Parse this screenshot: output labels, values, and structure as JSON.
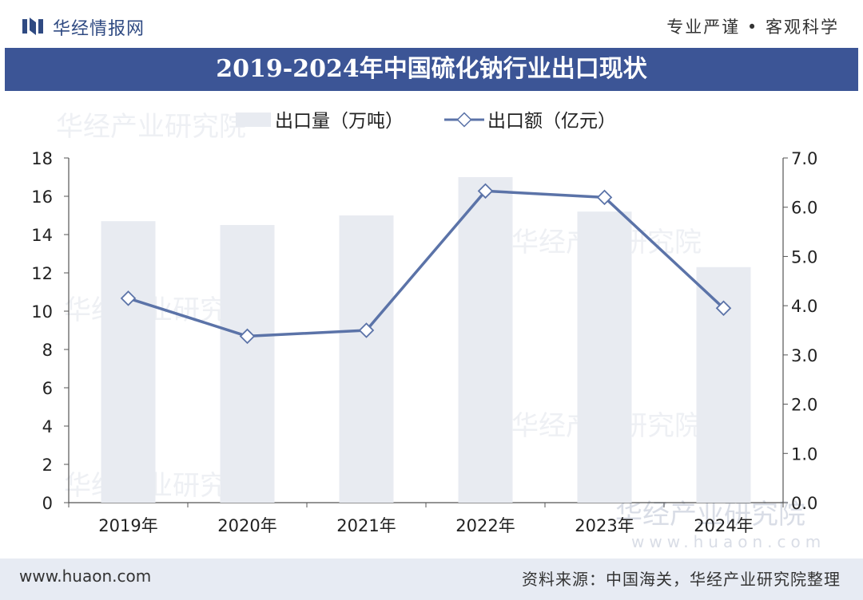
{
  "header": {
    "brand": "华经情报网",
    "slogan": "专业严谨 • 客观科学"
  },
  "title": "2019-2024年中国硫化钠行业出口现状",
  "watermark": {
    "text": "华经产业研究院",
    "url": "www.huaon.com"
  },
  "footer": {
    "site": "www.huaon.com",
    "source": "资料来源：中国海关，华经产业研究院整理"
  },
  "colors": {
    "title_bar": "#3c5596",
    "bar": "#e8ebf1",
    "line": "#5b73a8",
    "brand": "#2f4a82"
  },
  "chart_data": {
    "type": "bar",
    "categories": [
      "2019年",
      "2020年",
      "2021年",
      "2022年",
      "2023年",
      "2024年"
    ],
    "series": [
      {
        "name": "出口量（万吨）",
        "type": "bar",
        "axis": "left",
        "values": [
          14.7,
          14.5,
          15.0,
          17.0,
          15.2,
          12.3
        ]
      },
      {
        "name": "出口额（亿元）",
        "type": "line",
        "axis": "right",
        "values": [
          4.15,
          3.38,
          3.5,
          6.33,
          6.2,
          3.95
        ]
      }
    ],
    "y_left": {
      "min": 0,
      "max": 18,
      "ticks": [
        "0",
        "2",
        "4",
        "6",
        "8",
        "10",
        "12",
        "14",
        "16",
        "18"
      ]
    },
    "y_right": {
      "min": 0,
      "max": 7,
      "ticks": [
        "0.0",
        "1.0",
        "2.0",
        "3.0",
        "4.0",
        "5.0",
        "6.0",
        "7.0"
      ]
    },
    "legend": "top-center",
    "grid": false
  }
}
